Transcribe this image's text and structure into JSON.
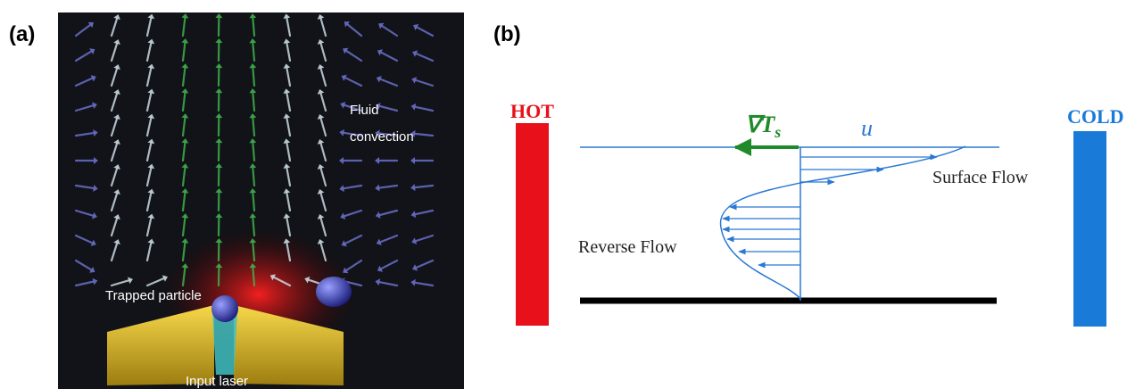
{
  "panel_a": {
    "label": "(a)",
    "fluid_line1": "Fluid",
    "fluid_line2": "convection",
    "trapped": "Trapped particle",
    "laser": "Input laser"
  },
  "panel_b": {
    "label": "(b)",
    "hot": "HOT",
    "cold": "COLD",
    "gradient": "∇T",
    "gradient_sub": "s",
    "velocity": "u",
    "surface": "Surface Flow",
    "reverse": "Reverse Flow"
  }
}
